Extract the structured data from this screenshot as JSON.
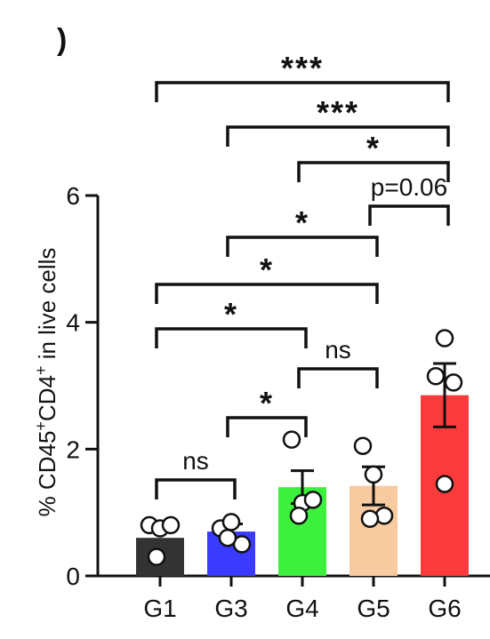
{
  "panel_label": ")",
  "chart_data": {
    "type": "bar",
    "categories": [
      "G1",
      "G3",
      "G4",
      "G5",
      "G6"
    ],
    "means": [
      0.6,
      0.7,
      1.4,
      1.42,
      2.85
    ],
    "sem": [
      0.0,
      0.12,
      0.26,
      0.3,
      0.5
    ],
    "points": [
      [
        0.8,
        0.75,
        0.8,
        0.3
      ],
      [
        0.75,
        0.85,
        0.5,
        0.6
      ],
      [
        2.15,
        1.15,
        1.2,
        0.95
      ],
      [
        2.05,
        1.6,
        0.95,
        0.9
      ],
      [
        3.75,
        3.15,
        3.05,
        1.45
      ]
    ],
    "colors": [
      "#333333",
      "#3b3bff",
      "#3ef03e",
      "#f8caa0",
      "#fa3b3b"
    ],
    "ylabel_parts": [
      "% CD45",
      "+",
      "CD4",
      "+",
      " in live cells"
    ],
    "yticks": [
      "0",
      "2",
      "4",
      "6"
    ],
    "ylim": [
      0,
      6
    ],
    "significance": [
      {
        "from": 0,
        "to": 1,
        "label": "ns"
      },
      {
        "from": 1,
        "to": 2,
        "label": "*"
      },
      {
        "from": 2,
        "to": 3,
        "label": "ns"
      },
      {
        "from": 0,
        "to": 2,
        "label": "*"
      },
      {
        "from": 0,
        "to": 3,
        "label": "*"
      },
      {
        "from": 1,
        "to": 3,
        "label": "*"
      },
      {
        "from": 3,
        "to": 4,
        "label": "p=0.06"
      },
      {
        "from": 2,
        "to": 4,
        "label": "*"
      },
      {
        "from": 2,
        "to": 4,
        "label": "*"
      },
      {
        "from": 1,
        "to": 4,
        "label": "***"
      },
      {
        "from": 0,
        "to": 4,
        "label": "***"
      }
    ]
  }
}
